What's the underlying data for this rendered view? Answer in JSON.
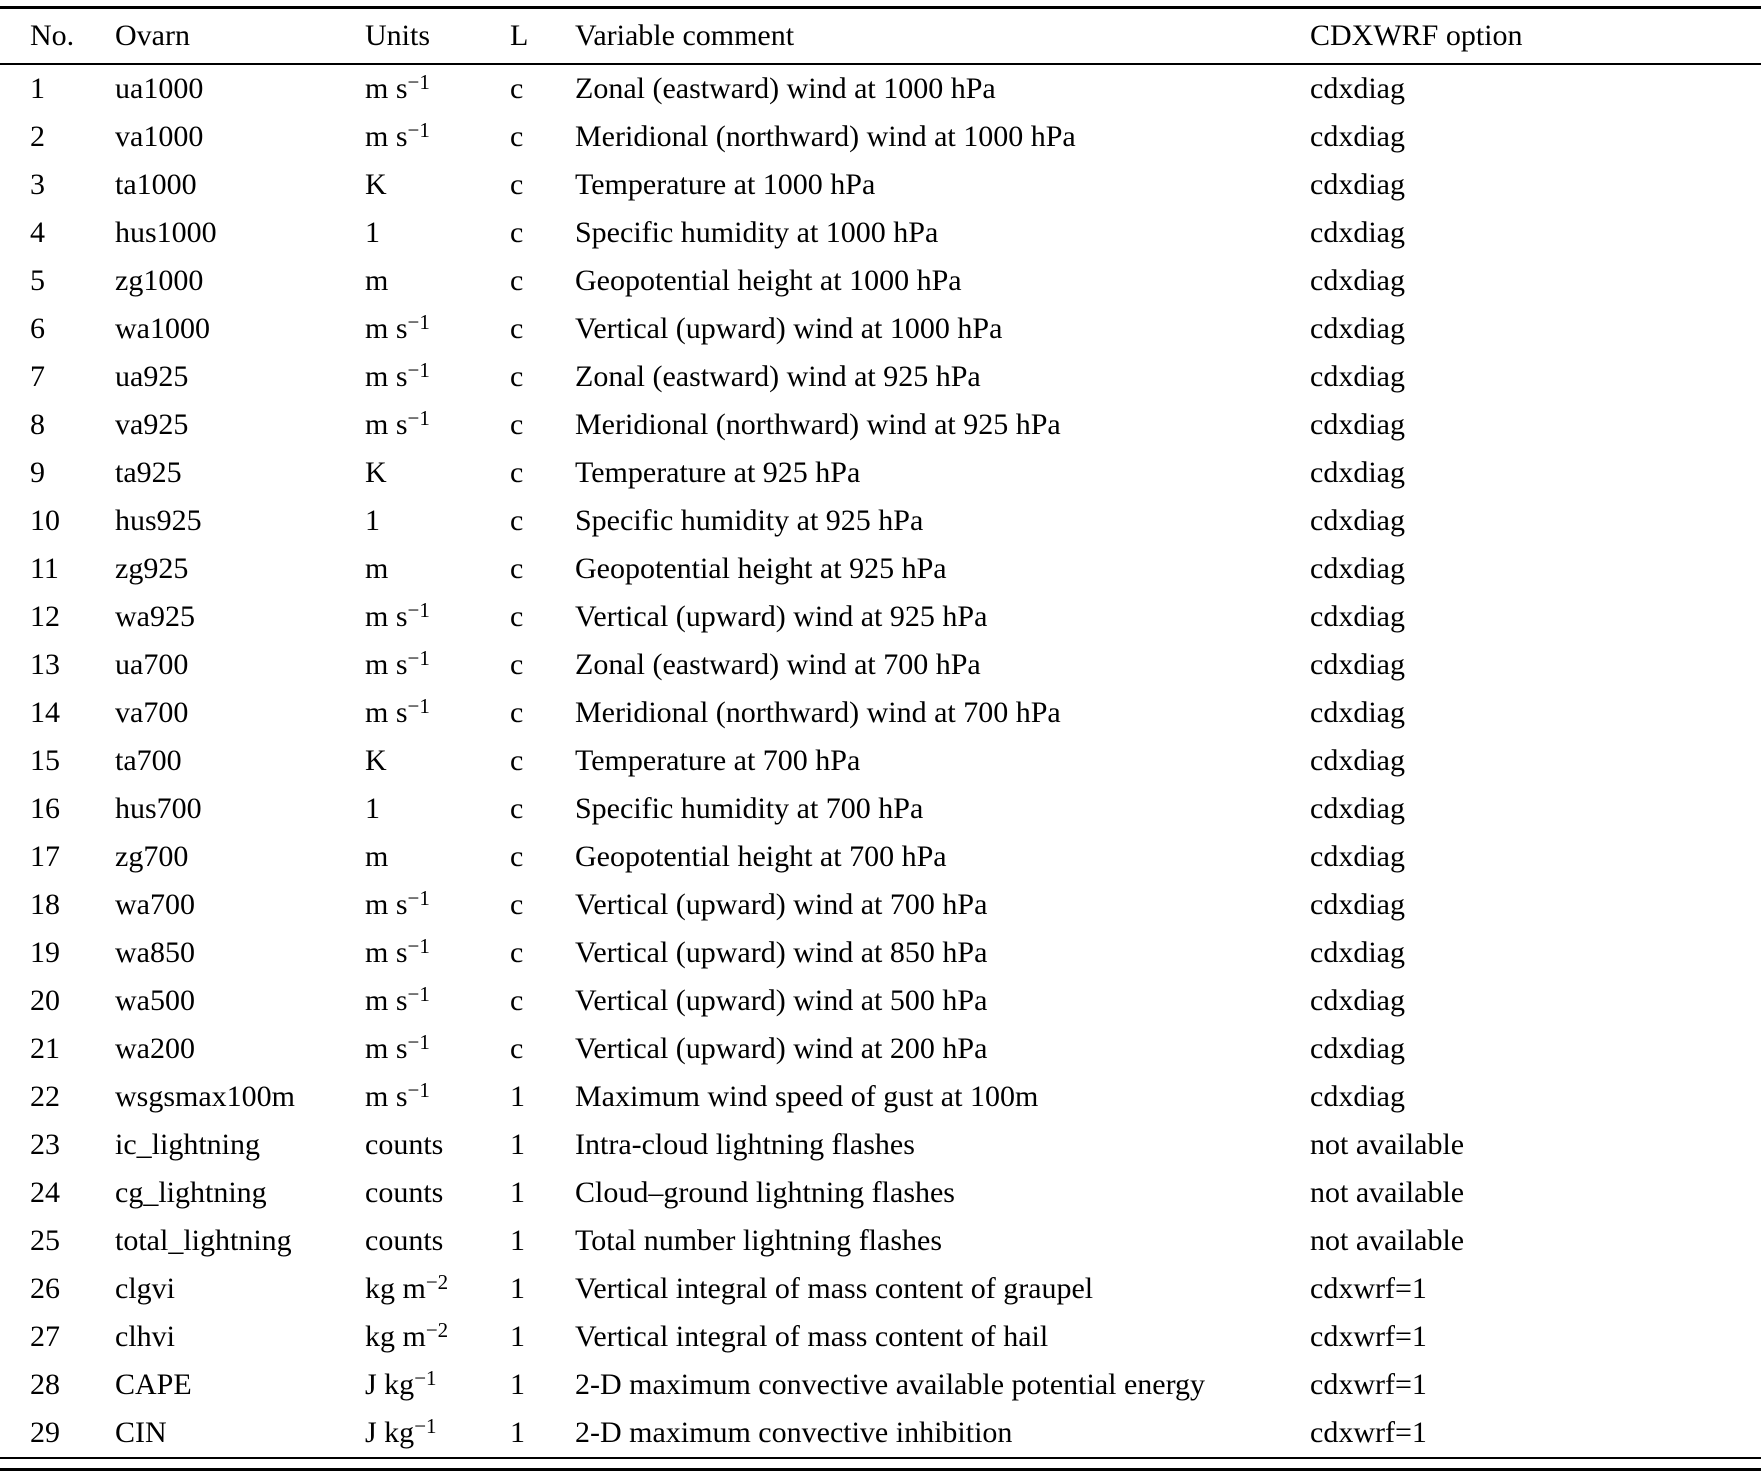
{
  "table": {
    "columns": [
      "No.",
      "Ovarn",
      "Units",
      "L",
      "Variable comment",
      "CDXWRF option"
    ],
    "rows": [
      {
        "no": "1",
        "ovarn": "ua1000",
        "unit": "m s",
        "unit_sup": "−1",
        "l": "c",
        "comment": "Zonal (eastward) wind at 1000 hPa",
        "option": "cdxdiag"
      },
      {
        "no": "2",
        "ovarn": "va1000",
        "unit": "m s",
        "unit_sup": "−1",
        "l": "c",
        "comment": "Meridional (northward) wind at 1000 hPa",
        "option": "cdxdiag"
      },
      {
        "no": "3",
        "ovarn": "ta1000",
        "unit": "K",
        "unit_sup": "",
        "l": "c",
        "comment": "Temperature at 1000 hPa",
        "option": "cdxdiag"
      },
      {
        "no": "4",
        "ovarn": "hus1000",
        "unit": "1",
        "unit_sup": "",
        "l": "c",
        "comment": "Specific humidity at 1000 hPa",
        "option": "cdxdiag"
      },
      {
        "no": "5",
        "ovarn": "zg1000",
        "unit": "m",
        "unit_sup": "",
        "l": "c",
        "comment": "Geopotential height at 1000 hPa",
        "option": "cdxdiag"
      },
      {
        "no": "6",
        "ovarn": "wa1000",
        "unit": "m s",
        "unit_sup": "−1",
        "l": "c",
        "comment": "Vertical (upward) wind at 1000 hPa",
        "option": "cdxdiag"
      },
      {
        "no": "7",
        "ovarn": "ua925",
        "unit": "m s",
        "unit_sup": "−1",
        "l": "c",
        "comment": "Zonal (eastward) wind at 925 hPa",
        "option": "cdxdiag"
      },
      {
        "no": "8",
        "ovarn": "va925",
        "unit": "m s",
        "unit_sup": "−1",
        "l": "c",
        "comment": "Meridional (northward) wind at 925 hPa",
        "option": "cdxdiag"
      },
      {
        "no": "9",
        "ovarn": "ta925",
        "unit": "K",
        "unit_sup": "",
        "l": "c",
        "comment": "Temperature at 925 hPa",
        "option": "cdxdiag"
      },
      {
        "no": "10",
        "ovarn": "hus925",
        "unit": "1",
        "unit_sup": "",
        "l": "c",
        "comment": "Specific humidity at 925 hPa",
        "option": "cdxdiag"
      },
      {
        "no": "11",
        "ovarn": "zg925",
        "unit": "m",
        "unit_sup": "",
        "l": "c",
        "comment": "Geopotential height at 925 hPa",
        "option": "cdxdiag"
      },
      {
        "no": "12",
        "ovarn": "wa925",
        "unit": "m s",
        "unit_sup": "−1",
        "l": "c",
        "comment": "Vertical (upward) wind at 925 hPa",
        "option": "cdxdiag"
      },
      {
        "no": "13",
        "ovarn": "ua700",
        "unit": "m s",
        "unit_sup": "−1",
        "l": "c",
        "comment": "Zonal (eastward) wind at 700 hPa",
        "option": "cdxdiag"
      },
      {
        "no": "14",
        "ovarn": "va700",
        "unit": "m s",
        "unit_sup": "−1",
        "l": "c",
        "comment": "Meridional (northward) wind at 700 hPa",
        "option": "cdxdiag"
      },
      {
        "no": "15",
        "ovarn": "ta700",
        "unit": "K",
        "unit_sup": "",
        "l": "c",
        "comment": "Temperature at 700 hPa",
        "option": "cdxdiag"
      },
      {
        "no": "16",
        "ovarn": "hus700",
        "unit": "1",
        "unit_sup": "",
        "l": "c",
        "comment": "Specific humidity at 700 hPa",
        "option": "cdxdiag"
      },
      {
        "no": "17",
        "ovarn": "zg700",
        "unit": "m",
        "unit_sup": "",
        "l": "c",
        "comment": "Geopotential height at 700 hPa",
        "option": "cdxdiag"
      },
      {
        "no": "18",
        "ovarn": "wa700",
        "unit": "m s",
        "unit_sup": "−1",
        "l": "c",
        "comment": "Vertical (upward) wind at 700 hPa",
        "option": "cdxdiag"
      },
      {
        "no": "19",
        "ovarn": "wa850",
        "unit": "m s",
        "unit_sup": "−1",
        "l": "c",
        "comment": "Vertical (upward) wind at 850 hPa",
        "option": "cdxdiag"
      },
      {
        "no": "20",
        "ovarn": "wa500",
        "unit": "m s",
        "unit_sup": "−1",
        "l": "c",
        "comment": "Vertical (upward) wind at 500 hPa",
        "option": "cdxdiag"
      },
      {
        "no": "21",
        "ovarn": "wa200",
        "unit": "m s",
        "unit_sup": "−1",
        "l": "c",
        "comment": "Vertical (upward) wind at 200 hPa",
        "option": "cdxdiag"
      },
      {
        "no": "22",
        "ovarn": "wsgsmax100m",
        "unit": "m s",
        "unit_sup": "−1",
        "l": "1",
        "comment": "Maximum wind speed of gust at 100m",
        "option": "cdxdiag"
      },
      {
        "no": "23",
        "ovarn": "ic_lightning",
        "unit": "counts",
        "unit_sup": "",
        "l": "1",
        "comment": "Intra-cloud lightning flashes",
        "option": "not available"
      },
      {
        "no": "24",
        "ovarn": "cg_lightning",
        "unit": "counts",
        "unit_sup": "",
        "l": "1",
        "comment": "Cloud–ground lightning flashes",
        "option": "not available"
      },
      {
        "no": "25",
        "ovarn": "total_lightning",
        "unit": "counts",
        "unit_sup": "",
        "l": "1",
        "comment": "Total number lightning flashes",
        "option": "not available"
      },
      {
        "no": "26",
        "ovarn": "clgvi",
        "unit": "kg m",
        "unit_sup": "−2",
        "l": "1",
        "comment": "Vertical integral of mass content of graupel",
        "option": "cdxwrf=1"
      },
      {
        "no": "27",
        "ovarn": "clhvi",
        "unit": "kg m",
        "unit_sup": "−2",
        "l": "1",
        "comment": "Vertical integral of mass content of hail",
        "option": "cdxwrf=1"
      },
      {
        "no": "28",
        "ovarn": "CAPE",
        "unit": "J kg",
        "unit_sup": "−1",
        "l": "1",
        "comment": "2-D maximum convective available potential energy",
        "option": "cdxwrf=1"
      },
      {
        "no": "29",
        "ovarn": "CIN",
        "unit": "J kg",
        "unit_sup": "−1",
        "l": "1",
        "comment": "2-D maximum convective inhibition",
        "option": "cdxwrf=1"
      }
    ]
  }
}
